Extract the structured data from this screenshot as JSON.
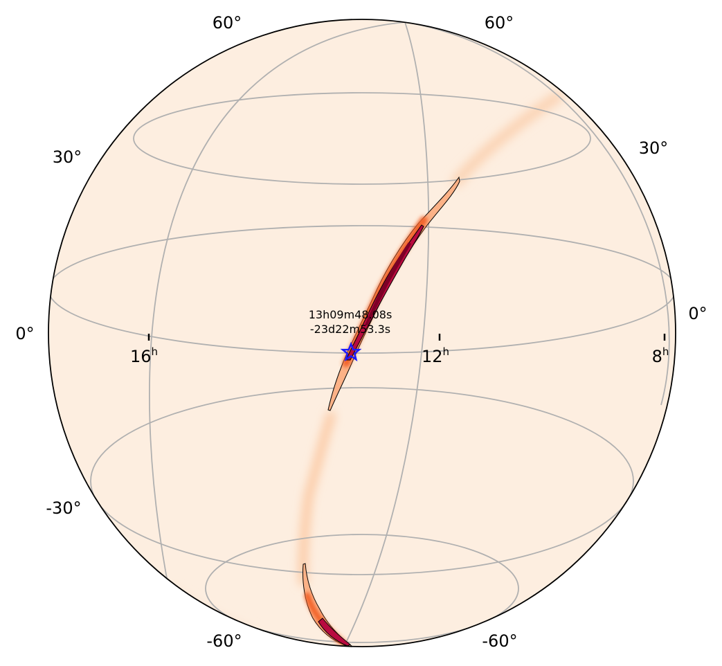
{
  "sky_map": {
    "projection": "orthographic globe",
    "background_color": "#fdeee0",
    "graticule_color": "#b0b0b0",
    "dec_labels": [
      {
        "id": "dec-60-left-top",
        "text": "60°"
      },
      {
        "id": "dec-60-right-top",
        "text": "60°"
      },
      {
        "id": "dec-30-left",
        "text": "30°"
      },
      {
        "id": "dec-30-right",
        "text": "30°"
      },
      {
        "id": "dec-0-left",
        "text": "0°"
      },
      {
        "id": "dec-0-right",
        "text": "0°"
      },
      {
        "id": "dec-m30-left",
        "text": "-30°"
      },
      {
        "id": "dec-m60-left",
        "text": "-60°"
      },
      {
        "id": "dec-m60-right",
        "text": "-60°"
      }
    ],
    "ra_labels": [
      {
        "id": "ra-16h",
        "hour": "16",
        "unit": "h"
      },
      {
        "id": "ra-12h",
        "hour": "12",
        "unit": "h"
      },
      {
        "id": "ra-8h",
        "hour": "8",
        "unit": "h"
      }
    ],
    "marker": {
      "icon": "star-icon",
      "color": "#1a1aff",
      "ra_text": "13h09m48.08s",
      "dec_text": "-23d22m53.3s"
    },
    "colormap": [
      "#fdeee0",
      "#fdb07a",
      "#f46d2e",
      "#d63a20",
      "#b80b3f",
      "#8a0028"
    ]
  }
}
